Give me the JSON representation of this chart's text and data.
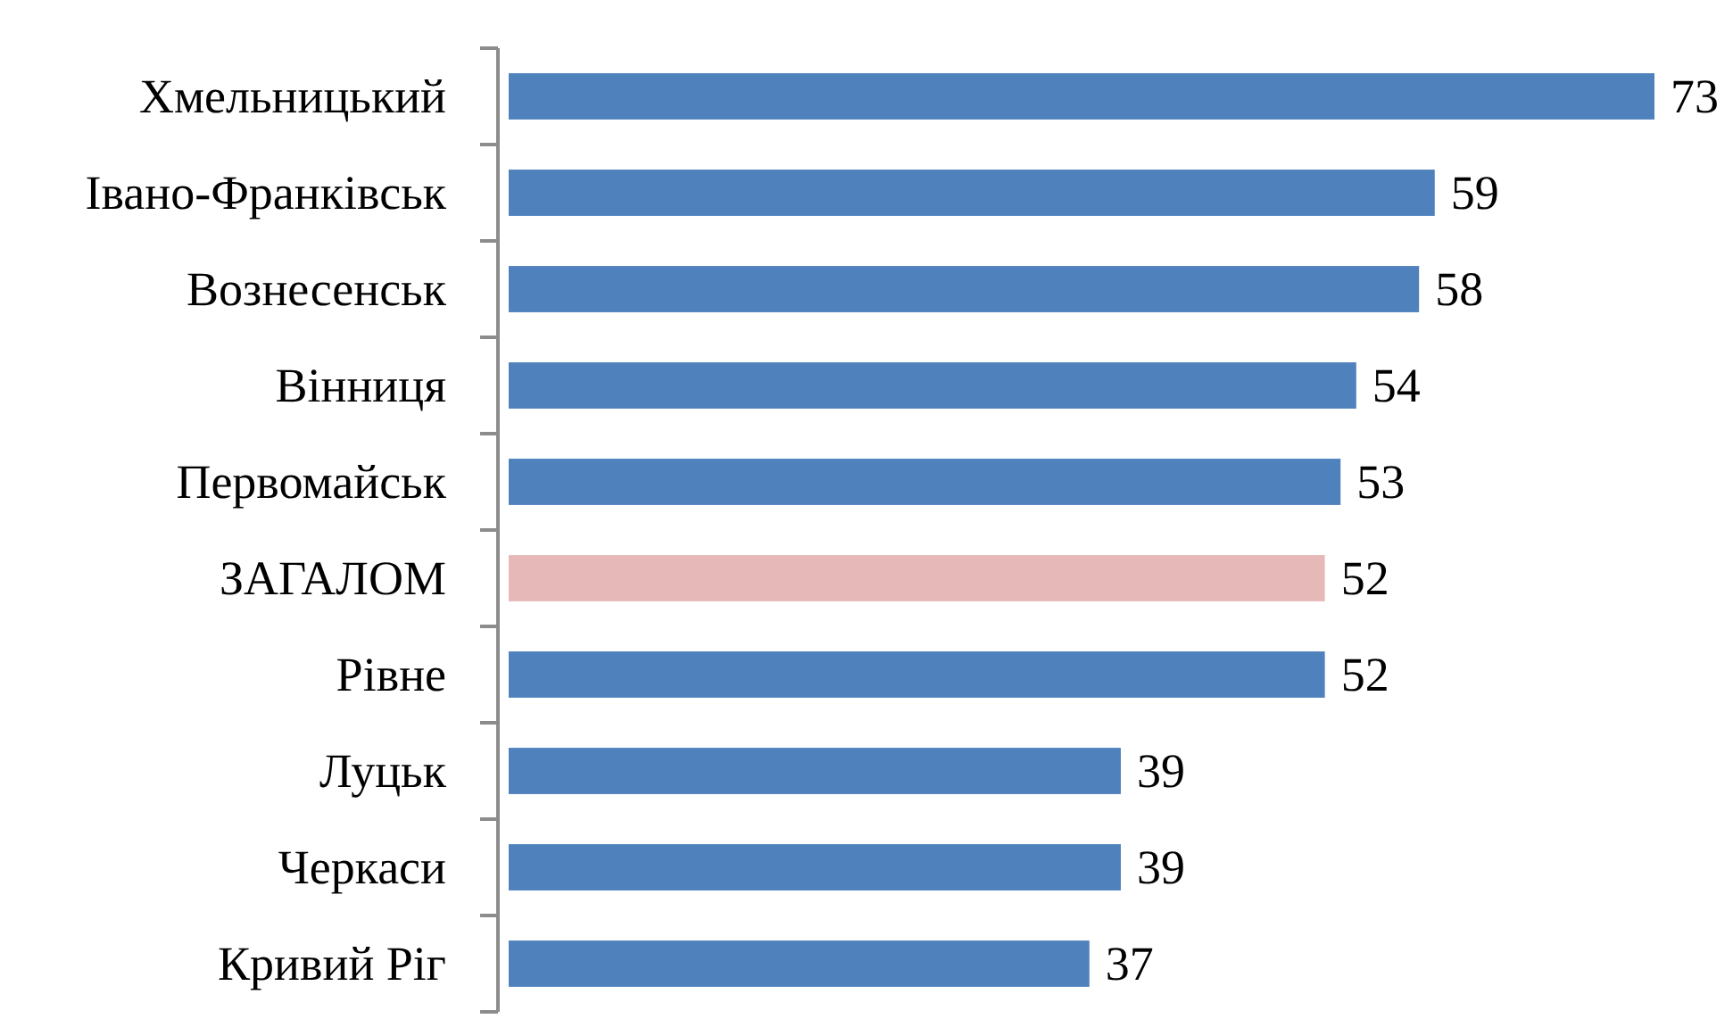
{
  "chart_data": {
    "type": "bar",
    "orientation": "horizontal",
    "categories": [
      "Хмельницький",
      "Івано-Франківськ",
      "Вознесенськ",
      "Вінниця",
      "Первомайськ",
      "ЗАГАЛОМ",
      "Рівне",
      "Луцьк",
      "Черкаси",
      "Кривий Ріг"
    ],
    "values": [
      73,
      59,
      58,
      54,
      53,
      52,
      52,
      39,
      39,
      37
    ],
    "colors": [
      "#4f81bd",
      "#4f81bd",
      "#4f81bd",
      "#4f81bd",
      "#4f81bd",
      "#e6b9b8",
      "#4f81bd",
      "#4f81bd",
      "#4f81bd",
      "#4f81bd"
    ],
    "data_labels": true
  }
}
